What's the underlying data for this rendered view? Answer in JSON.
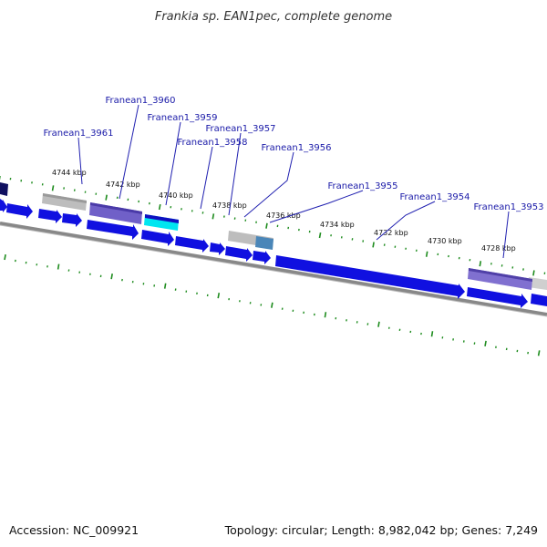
{
  "title": "Frankia sp. EAN1pec, complete genome",
  "footer": {
    "accession": "Accession: NC_009921",
    "topology": "Topology: circular; Length: 8,982,042 bp; Genes: 7,249"
  },
  "genes": [
    {
      "name": "Franean1_3961"
    },
    {
      "name": "Franean1_3960"
    },
    {
      "name": "Franean1_3959"
    },
    {
      "name": "Franean1_3958"
    },
    {
      "name": "Franean1_3957"
    },
    {
      "name": "Franean1_3956"
    },
    {
      "name": "Franean1_3955"
    },
    {
      "name": "Franean1_3954"
    },
    {
      "name": "Franean1_3953"
    }
  ],
  "kbp_labels": [
    "4744 kbp",
    "4742 kbp",
    "4740 kbp",
    "4738 kbp",
    "4736 kbp",
    "4734 kbp",
    "4732 kbp",
    "4730 kbp",
    "4728 kbp"
  ],
  "colors": {
    "cds": "#1010e0",
    "cds_light": "#3a4cff",
    "grey_feature": "#bdbdbd",
    "purple_feature": "#7060c8",
    "cyan_feature": "#00e6f0",
    "steelblue_feature": "#4a86b8",
    "backbone": "#888888",
    "tick": "#1e8c1e",
    "label_line": "#2020b0"
  }
}
